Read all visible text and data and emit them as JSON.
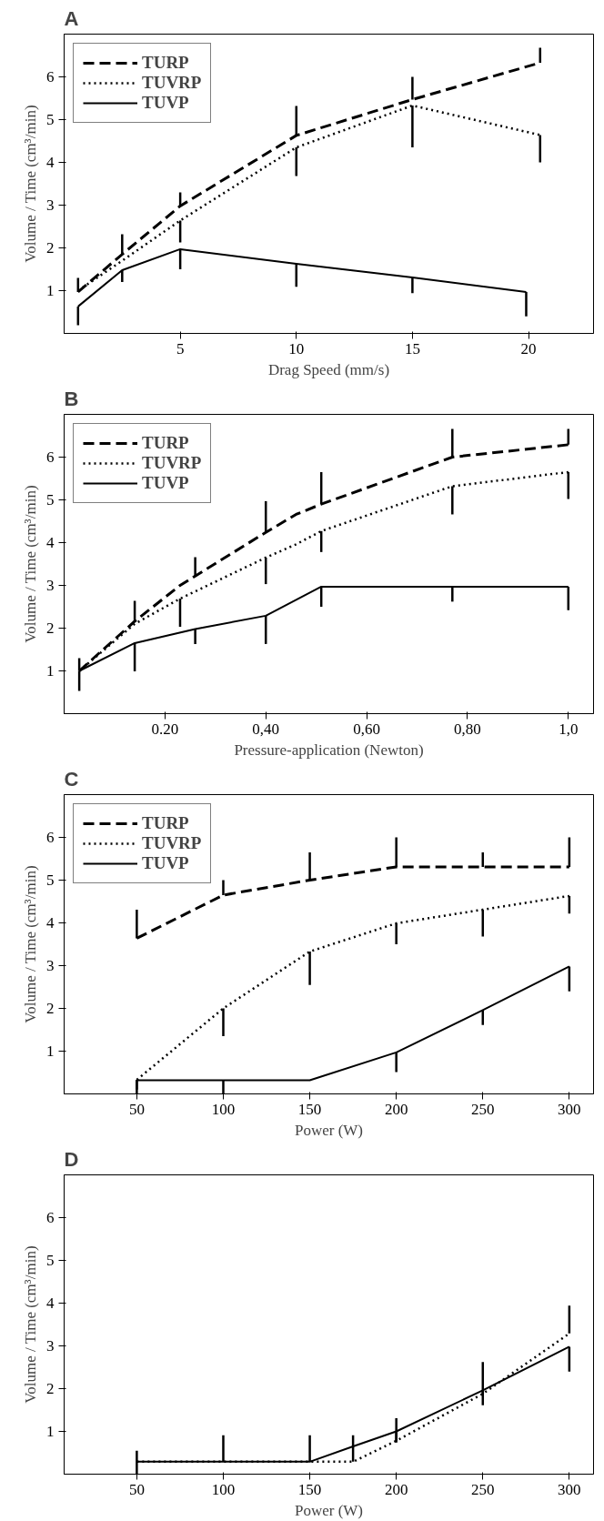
{
  "chart_data": [
    {
      "type": "line",
      "title": "A",
      "xlabel": "Drag Speed (mm/s)",
      "ylabel": "Volume / Time (cm³/min)",
      "xlim": [
        0,
        22.8
      ],
      "ylim": [
        0,
        7
      ],
      "xticks": [
        5,
        10,
        15,
        20
      ],
      "yticks": [
        1,
        2,
        3,
        4,
        5,
        6
      ],
      "legend": "top left",
      "series": [
        {
          "name": "TURP",
          "color": "#000000",
          "line_style": "dashed",
          "x": [
            0.6,
            2.5,
            5,
            10,
            15,
            20.5
          ],
          "values": [
            0.97,
            1.85,
            2.98,
            4.63,
            5.47,
            6.33
          ],
          "errors": [
            [
              0.97,
              1.3
            ],
            [
              1.85,
              2.32
            ],
            [
              2.98,
              3.3
            ],
            [
              4.63,
              5.32
            ],
            [
              5.47,
              6.0
            ],
            [
              6.33,
              6.68
            ]
          ]
        },
        {
          "name": "TUVRP",
          "color": "#000000",
          "line_style": "dotted",
          "x": [
            0.6,
            2.5,
            5,
            10,
            15,
            20.5
          ],
          "values": [
            1.0,
            1.7,
            2.64,
            4.35,
            5.33,
            4.64
          ],
          "errors": [
            null,
            null,
            [
              2.13,
              2.64
            ],
            [
              3.68,
              4.35
            ],
            [
              4.35,
              5.33
            ],
            [
              4.0,
              4.64
            ]
          ]
        },
        {
          "name": "TUVP",
          "color": "#000000",
          "line_style": "solid",
          "x": [
            0.6,
            2.5,
            5,
            10,
            15,
            19.9
          ],
          "values": [
            0.63,
            1.48,
            1.97,
            1.63,
            1.31,
            0.97
          ],
          "errors": [
            [
              0.19,
              0.63
            ],
            [
              1.2,
              1.48
            ],
            [
              1.5,
              1.97
            ],
            [
              1.09,
              1.63
            ],
            [
              0.94,
              1.31
            ],
            [
              0.4,
              0.97
            ]
          ]
        }
      ]
    },
    {
      "type": "line",
      "title": "B",
      "xlabel": "Pressure-application (Newton)",
      "ylabel": "Volume / Time (cm³/min)",
      "xlim": [
        0,
        1.05
      ],
      "ylim": [
        0,
        7
      ],
      "xticks": [
        {
          "value": 0.2,
          "label": "0.20"
        },
        {
          "value": 0.4,
          "label": "0,40"
        },
        {
          "value": 0.6,
          "label": "0,60"
        },
        {
          "value": 0.8,
          "label": "0,80"
        },
        {
          "value": 1.0,
          "label": "1,0"
        }
      ],
      "yticks": [
        1,
        2,
        3,
        4,
        5,
        6
      ],
      "legend": "top left",
      "series": [
        {
          "name": "TURP",
          "color": "#000000",
          "line_style": "dashed",
          "x": [
            0.03,
            0.14,
            0.23,
            0.26,
            0.4,
            0.46,
            0.51,
            0.77,
            1.0
          ],
          "values": [
            1.0,
            2.16,
            3.0,
            3.22,
            4.24,
            4.66,
            4.9,
            6.0,
            6.29
          ],
          "errors": [
            [
              1.0,
              1.3
            ],
            [
              2.16,
              2.64
            ],
            null,
            [
              3.22,
              3.66
            ],
            [
              4.24,
              4.97
            ],
            null,
            [
              4.9,
              5.65
            ],
            [
              6.0,
              6.66
            ],
            [
              6.29,
              6.66
            ]
          ]
        },
        {
          "name": "TUVRP",
          "color": "#000000",
          "line_style": "dotted",
          "x": [
            0.03,
            0.14,
            0.23,
            0.4,
            0.46,
            0.51,
            0.77,
            1.0
          ],
          "values": [
            1.0,
            2.1,
            2.69,
            3.65,
            3.96,
            4.27,
            5.32,
            5.65
          ],
          "errors": [
            null,
            null,
            [
              2.03,
              2.69
            ],
            [
              3.03,
              3.65
            ],
            null,
            [
              3.78,
              4.27
            ],
            [
              4.66,
              5.32
            ],
            [
              5.02,
              5.65
            ]
          ]
        },
        {
          "name": "TUVP",
          "color": "#000000",
          "line_style": "solid",
          "x": [
            0.03,
            0.14,
            0.26,
            0.4,
            0.51,
            0.77,
            1.0
          ],
          "values": [
            1.0,
            1.65,
            1.98,
            2.29,
            2.97,
            2.97,
            2.97
          ],
          "errors": [
            [
              0.53,
              1.0
            ],
            [
              0.99,
              1.65
            ],
            [
              1.63,
              1.98
            ],
            [
              1.63,
              2.29
            ],
            [
              2.5,
              2.97
            ],
            [
              2.62,
              2.97
            ],
            [
              2.42,
              2.97
            ]
          ]
        }
      ]
    },
    {
      "type": "line",
      "title": "C",
      "xlabel": "Power (W)",
      "ylabel": "Volume / Time (cm³/min)",
      "xlim": [
        8,
        314
      ],
      "ylim": [
        0,
        7
      ],
      "xticks": [
        50,
        100,
        150,
        200,
        250,
        300
      ],
      "yticks": [
        1,
        2,
        3,
        4,
        5,
        6
      ],
      "legend": "top left",
      "series": [
        {
          "name": "TURP",
          "color": "#000000",
          "line_style": "dashed",
          "x": [
            50,
            100,
            150,
            200,
            250,
            300
          ],
          "values": [
            3.64,
            4.65,
            5.0,
            5.31,
            5.31,
            5.31
          ],
          "errors": [
            [
              3.64,
              4.31
            ],
            [
              4.65,
              5.0
            ],
            [
              5.0,
              5.65
            ],
            [
              5.31,
              6.0
            ],
            [
              5.31,
              5.65
            ],
            [
              5.31,
              6.0
            ]
          ]
        },
        {
          "name": "TUVRP",
          "color": "#000000",
          "line_style": "dotted",
          "x": [
            50,
            100,
            150,
            200,
            250,
            300
          ],
          "values": [
            0.33,
            2.0,
            3.33,
            3.99,
            4.31,
            4.63
          ],
          "errors": [
            [
              0.1,
              0.33
            ],
            [
              1.35,
              2.0
            ],
            [
              2.55,
              3.33
            ],
            [
              3.5,
              3.99
            ],
            [
              3.68,
              4.31
            ],
            [
              4.22,
              4.63
            ]
          ]
        },
        {
          "name": "TUVP",
          "color": "#000000",
          "line_style": "solid",
          "x": [
            50,
            100,
            150,
            200,
            250,
            300
          ],
          "values": [
            0.32,
            0.32,
            0.32,
            0.97,
            1.96,
            2.98
          ],
          "errors": [
            [
              0,
              0.32
            ],
            [
              0,
              0.32
            ],
            null,
            [
              0.51,
              0.97
            ],
            [
              1.61,
              1.96
            ],
            [
              2.4,
              2.98
            ]
          ]
        }
      ]
    },
    {
      "type": "line",
      "title": "D",
      "xlabel": "Power (W)",
      "ylabel": "Volume / Time (cm³/min)",
      "xlim": [
        8,
        314
      ],
      "ylim": [
        0,
        7
      ],
      "xticks": [
        50,
        100,
        150,
        200,
        250,
        300
      ],
      "yticks": [
        1,
        2,
        3,
        4,
        5,
        6
      ],
      "series": [
        {
          "color": "#000000",
          "line_style": "solid",
          "x": [
            50,
            100,
            150,
            175,
            200,
            250,
            300
          ],
          "values": [
            0.29,
            0.29,
            0.29,
            0.65,
            1.0,
            1.96,
            2.98
          ],
          "errors": [
            null,
            null,
            null,
            null,
            [
              0.74,
              1.0
            ],
            [
              1.61,
              1.96
            ],
            [
              2.4,
              2.98
            ]
          ]
        },
        {
          "color": "#000000",
          "line_style": "dotted",
          "x": [
            50,
            100,
            150,
            175,
            200,
            250,
            300
          ],
          "values": [
            0.29,
            0.29,
            0.29,
            0.29,
            0.78,
            1.88,
            3.29
          ],
          "errors": [
            [
              0,
              0.55
            ],
            [
              0.29,
              0.91
            ],
            [
              0.29,
              0.91
            ],
            [
              0.29,
              0.91
            ],
            [
              0.78,
              1.31
            ],
            [
              1.88,
              2.62
            ],
            [
              3.29,
              3.94
            ]
          ]
        }
      ]
    }
  ]
}
